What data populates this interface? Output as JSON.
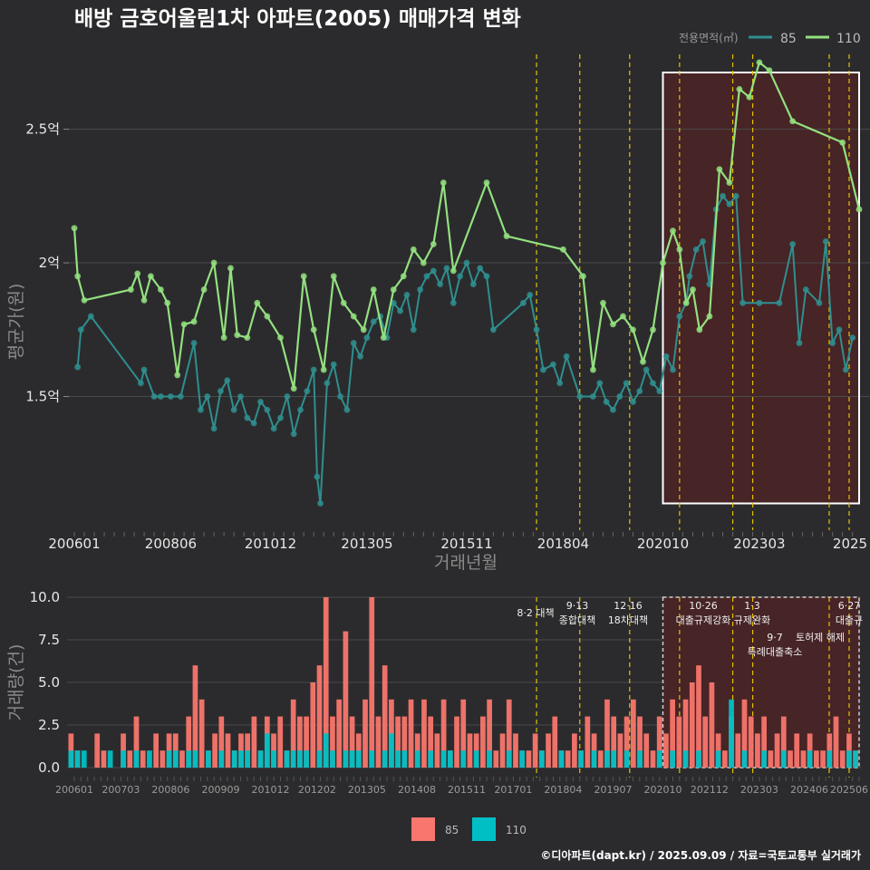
{
  "title": "배방 금호어울림1차 아파트(2005) 매매가격 변화",
  "caption": "©디아파트(dapt.kr) / 2025.09.09 / 자료=국토교통부 실거래가",
  "colors": {
    "background": "#2b2b2d",
    "grid": "#4a4a4a",
    "s85_line": "#2f8f8f",
    "s110_line": "#93e07f",
    "bar85": "#f8766d",
    "bar110": "#00bfc4",
    "policy_line": "#e6c200",
    "highlight_fill": "#4a2426",
    "highlight_border": "#ffffff"
  },
  "legend_top": {
    "heading": "전용면적(㎡)",
    "items": [
      "85",
      "110"
    ]
  },
  "legend_bottom": {
    "items": [
      "85",
      "110"
    ]
  },
  "chart_data": [
    {
      "type": "line",
      "xlabel": "거래년월",
      "ylabel": "평균가(원)",
      "x_ticks": [
        "200601",
        "200806",
        "201012",
        "201305",
        "201511",
        "201804",
        "202010",
        "202303",
        "2025"
      ],
      "y_ticks": [
        "1.5억",
        "2억",
        "2.5억"
      ],
      "ylim": [
        1.0,
        2.78
      ],
      "y_unit": "억",
      "x_range": [
        "2006-01",
        "2025-09"
      ],
      "grid": true,
      "legend_position": "top-right",
      "highlight_range": [
        "2020-10",
        "2025-09"
      ],
      "policy_dates": [
        "2017-08",
        "2018-09",
        "2019-12",
        "2021-03",
        "2022-07",
        "2023-01",
        "2024-12",
        "2025-06"
      ],
      "series": [
        {
          "name": "85",
          "points": [
            [
              "2006-02",
              1.61
            ],
            [
              "2006-03",
              1.75
            ],
            [
              "2006-06",
              1.8
            ],
            [
              "2007-09",
              1.55
            ],
            [
              "2007-10",
              1.6
            ],
            [
              "2008-01",
              1.5
            ],
            [
              "2008-03",
              1.5
            ],
            [
              "2008-06",
              1.5
            ],
            [
              "2008-09",
              1.5
            ],
            [
              "2009-01",
              1.7
            ],
            [
              "2009-03",
              1.45
            ],
            [
              "2009-05",
              1.5
            ],
            [
              "2009-07",
              1.38
            ],
            [
              "2009-09",
              1.52
            ],
            [
              "2009-11",
              1.56
            ],
            [
              "2010-01",
              1.45
            ],
            [
              "2010-03",
              1.5
            ],
            [
              "2010-05",
              1.42
            ],
            [
              "2010-07",
              1.4
            ],
            [
              "2010-09",
              1.48
            ],
            [
              "2010-11",
              1.45
            ],
            [
              "2011-01",
              1.38
            ],
            [
              "2011-03",
              1.42
            ],
            [
              "2011-05",
              1.5
            ],
            [
              "2011-07",
              1.36
            ],
            [
              "2011-09",
              1.45
            ],
            [
              "2011-11",
              1.52
            ],
            [
              "2012-01",
              1.6
            ],
            [
              "2012-02",
              1.2
            ],
            [
              "2012-03",
              1.1
            ],
            [
              "2012-05",
              1.55
            ],
            [
              "2012-07",
              1.62
            ],
            [
              "2012-09",
              1.5
            ],
            [
              "2012-11",
              1.45
            ],
            [
              "2013-01",
              1.7
            ],
            [
              "2013-03",
              1.65
            ],
            [
              "2013-05",
              1.72
            ],
            [
              "2013-07",
              1.78
            ],
            [
              "2013-09",
              1.8
            ],
            [
              "2013-11",
              1.72
            ],
            [
              "2014-01",
              1.85
            ],
            [
              "2014-03",
              1.82
            ],
            [
              "2014-05",
              1.88
            ],
            [
              "2014-07",
              1.75
            ],
            [
              "2014-09",
              1.9
            ],
            [
              "2014-11",
              1.95
            ],
            [
              "2015-01",
              1.97
            ],
            [
              "2015-03",
              1.92
            ],
            [
              "2015-05",
              1.98
            ],
            [
              "2015-07",
              1.85
            ],
            [
              "2015-09",
              1.95
            ],
            [
              "2015-11",
              2.0
            ],
            [
              "2016-01",
              1.92
            ],
            [
              "2016-03",
              1.98
            ],
            [
              "2016-05",
              1.95
            ],
            [
              "2016-07",
              1.75
            ],
            [
              "2017-04",
              1.85
            ],
            [
              "2017-06",
              1.88
            ],
            [
              "2017-08",
              1.75
            ],
            [
              "2017-10",
              1.6
            ],
            [
              "2018-01",
              1.62
            ],
            [
              "2018-03",
              1.55
            ],
            [
              "2018-05",
              1.65
            ],
            [
              "2018-09",
              1.5
            ],
            [
              "2019-01",
              1.5
            ],
            [
              "2019-03",
              1.55
            ],
            [
              "2019-05",
              1.48
            ],
            [
              "2019-07",
              1.45
            ],
            [
              "2019-09",
              1.5
            ],
            [
              "2019-11",
              1.55
            ],
            [
              "2020-01",
              1.48
            ],
            [
              "2020-03",
              1.52
            ],
            [
              "2020-05",
              1.6
            ],
            [
              "2020-07",
              1.55
            ],
            [
              "2020-09",
              1.52
            ],
            [
              "2020-11",
              1.65
            ],
            [
              "2021-01",
              1.6
            ],
            [
              "2021-03",
              1.8
            ],
            [
              "2021-05",
              1.85
            ],
            [
              "2021-06",
              1.95
            ],
            [
              "2021-08",
              2.05
            ],
            [
              "2021-10",
              2.08
            ],
            [
              "2021-12",
              1.92
            ],
            [
              "2022-02",
              2.2
            ],
            [
              "2022-04",
              2.25
            ],
            [
              "2022-06",
              2.22
            ],
            [
              "2022-08",
              2.25
            ],
            [
              "2022-10",
              1.85
            ],
            [
              "2023-03",
              1.85
            ],
            [
              "2023-09",
              1.85
            ],
            [
              "2024-01",
              2.07
            ],
            [
              "2024-03",
              1.7
            ],
            [
              "2024-05",
              1.9
            ],
            [
              "2024-09",
              1.85
            ],
            [
              "2024-11",
              2.08
            ],
            [
              "2025-01",
              1.7
            ],
            [
              "2025-03",
              1.75
            ],
            [
              "2025-05",
              1.6
            ],
            [
              "2025-07",
              1.72
            ]
          ]
        },
        {
          "name": "110",
          "points": [
            [
              "2006-01",
              2.13
            ],
            [
              "2006-02",
              1.95
            ],
            [
              "2006-04",
              1.86
            ],
            [
              "2007-06",
              1.9
            ],
            [
              "2007-08",
              1.96
            ],
            [
              "2007-10",
              1.86
            ],
            [
              "2007-12",
              1.95
            ],
            [
              "2008-03",
              1.9
            ],
            [
              "2008-05",
              1.85
            ],
            [
              "2008-08",
              1.58
            ],
            [
              "2008-10",
              1.77
            ],
            [
              "2009-01",
              1.78
            ],
            [
              "2009-04",
              1.9
            ],
            [
              "2009-07",
              2.0
            ],
            [
              "2009-10",
              1.72
            ],
            [
              "2009-12",
              1.98
            ],
            [
              "2010-02",
              1.73
            ],
            [
              "2010-05",
              1.72
            ],
            [
              "2010-08",
              1.85
            ],
            [
              "2010-11",
              1.8
            ],
            [
              "2011-03",
              1.72
            ],
            [
              "2011-07",
              1.53
            ],
            [
              "2011-10",
              1.95
            ],
            [
              "2012-01",
              1.75
            ],
            [
              "2012-04",
              1.6
            ],
            [
              "2012-07",
              1.95
            ],
            [
              "2012-10",
              1.85
            ],
            [
              "2013-01",
              1.8
            ],
            [
              "2013-04",
              1.75
            ],
            [
              "2013-07",
              1.9
            ],
            [
              "2013-10",
              1.72
            ],
            [
              "2014-01",
              1.9
            ],
            [
              "2014-04",
              1.95
            ],
            [
              "2014-07",
              2.05
            ],
            [
              "2014-10",
              2.0
            ],
            [
              "2015-01",
              2.07
            ],
            [
              "2015-04",
              2.3
            ],
            [
              "2015-07",
              1.97
            ],
            [
              "2016-05",
              2.3
            ],
            [
              "2016-11",
              2.1
            ],
            [
              "2018-04",
              2.05
            ],
            [
              "2018-10",
              1.95
            ],
            [
              "2019-01",
              1.6
            ],
            [
              "2019-04",
              1.85
            ],
            [
              "2019-07",
              1.77
            ],
            [
              "2019-10",
              1.8
            ],
            [
              "2020-01",
              1.75
            ],
            [
              "2020-04",
              1.63
            ],
            [
              "2020-07",
              1.75
            ],
            [
              "2020-10",
              2.0
            ],
            [
              "2021-01",
              2.12
            ],
            [
              "2021-03",
              2.05
            ],
            [
              "2021-05",
              1.85
            ],
            [
              "2021-07",
              1.9
            ],
            [
              "2021-09",
              1.75
            ],
            [
              "2021-12",
              1.8
            ],
            [
              "2022-03",
              2.35
            ],
            [
              "2022-06",
              2.3
            ],
            [
              "2022-09",
              2.65
            ],
            [
              "2022-12",
              2.62
            ],
            [
              "2023-03",
              2.75
            ],
            [
              "2023-06",
              2.72
            ],
            [
              "2024-01",
              2.53
            ],
            [
              "2025-04",
              2.45
            ],
            [
              "2025-09",
              2.2
            ]
          ]
        }
      ]
    },
    {
      "type": "bar",
      "xlabel": "",
      "ylabel": "거래량(건)",
      "x_ticks": [
        "200601",
        "200703",
        "200806",
        "200909",
        "201012",
        "201202",
        "201305",
        "201408",
        "201511",
        "201701",
        "201804",
        "201907",
        "202010",
        "202112",
        "202303",
        "202406",
        "202506"
      ],
      "y_ticks": [
        "0.0",
        "2.5",
        "5.0",
        "7.5",
        "10.0"
      ],
      "ylim": [
        0,
        10
      ],
      "grid": true,
      "legend_position": "bottom",
      "policy_labels": [
        {
          "lines": [
            "8·2 대책"
          ]
        },
        {
          "lines": [
            "9·13",
            "종합대책"
          ]
        },
        {
          "lines": [
            "12·16",
            "18차대책"
          ]
        },
        {
          "lines": [
            "10·26",
            "대출규제강화"
          ]
        },
        {
          "lines": [
            "1·3",
            "규제완화"
          ]
        },
        {
          "lines": [
            "9·7",
            "특례대출축소"
          ]
        },
        {
          "lines": [
            "토허제 해제"
          ]
        },
        {
          "lines": [
            "6·27",
            "대출규"
          ]
        }
      ],
      "series": [
        {
          "name": "85",
          "values": [
            2,
            1,
            0,
            0,
            2,
            1,
            0,
            0,
            2,
            1,
            3,
            1,
            0,
            2,
            1,
            2,
            2,
            1,
            3,
            6,
            4,
            1,
            2,
            3,
            2,
            1,
            2,
            2,
            3,
            1,
            3,
            2,
            3,
            1,
            4,
            3,
            3,
            5,
            6,
            10,
            3,
            4,
            8,
            3,
            2,
            4,
            10,
            3,
            6,
            4,
            3,
            3,
            4,
            2,
            4,
            3,
            2,
            4,
            1,
            3,
            4,
            2,
            2,
            3,
            4,
            1,
            2,
            4,
            2,
            1,
            1,
            2,
            1,
            2,
            3,
            1,
            1,
            2,
            1,
            3,
            2,
            1,
            4,
            3,
            2,
            3,
            4,
            3,
            2,
            1,
            3,
            2,
            4,
            3,
            4,
            5,
            6,
            3,
            5,
            2,
            1,
            3,
            2,
            4,
            3,
            2,
            3,
            1,
            2,
            3,
            1,
            2,
            1,
            2,
            1,
            1,
            2,
            3,
            1,
            2,
            1
          ]
        },
        {
          "name": "110",
          "values": [
            1,
            1,
            1,
            0,
            0,
            0,
            1,
            0,
            1,
            0,
            1,
            0,
            1,
            0,
            0,
            1,
            1,
            0,
            1,
            1,
            0,
            1,
            0,
            1,
            0,
            1,
            1,
            1,
            0,
            1,
            2,
            1,
            0,
            1,
            1,
            1,
            1,
            0,
            1,
            2,
            1,
            0,
            1,
            1,
            1,
            0,
            1,
            0,
            1,
            2,
            1,
            1,
            0,
            1,
            0,
            1,
            0,
            1,
            1,
            0,
            1,
            0,
            1,
            0,
            1,
            0,
            0,
            1,
            0,
            1,
            0,
            0,
            1,
            0,
            0,
            1,
            0,
            0,
            1,
            0,
            1,
            0,
            1,
            1,
            0,
            1,
            0,
            1,
            0,
            0,
            1,
            0,
            1,
            0,
            1,
            0,
            1,
            0,
            0,
            1,
            0,
            4,
            0,
            1,
            0,
            0,
            1,
            0,
            0,
            1,
            0,
            0,
            0,
            1,
            0,
            0,
            1,
            0,
            0,
            1,
            1
          ]
        }
      ]
    }
  ]
}
